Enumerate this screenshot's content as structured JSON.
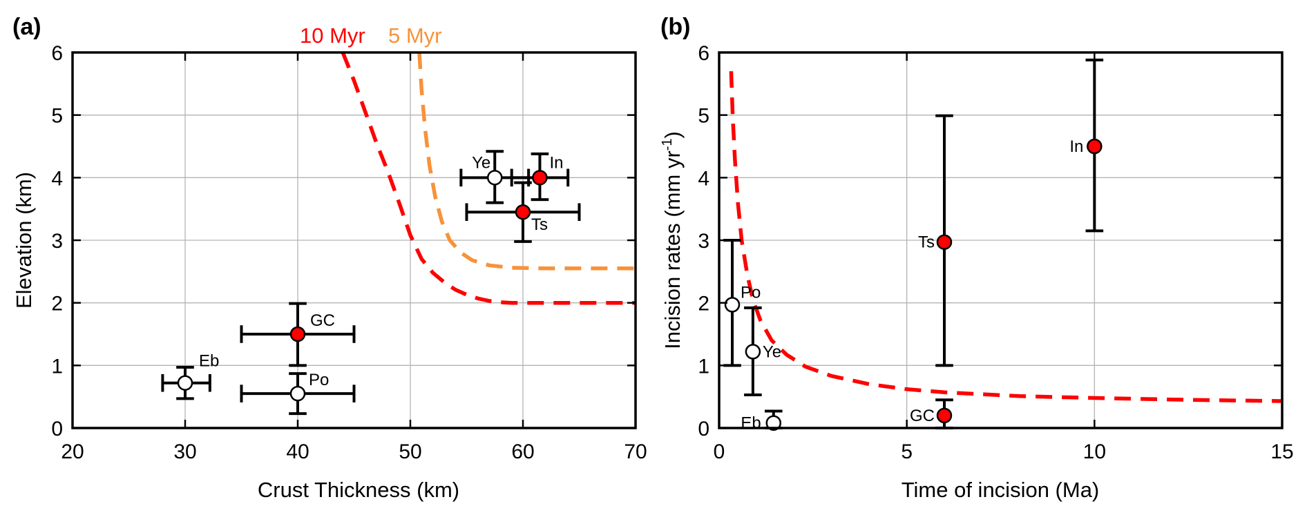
{
  "colors": {
    "red_series": "#ff0000",
    "orange_series": "#f7923a",
    "filled_marker": "#ff0000",
    "open_marker": "#ffffff"
  },
  "chart_data": [
    {
      "panel_label": "(a)",
      "type": "scatter",
      "xlabel": "Crust Thickness (km)",
      "ylabel": "Elevation (km)",
      "xlim": [
        20,
        70
      ],
      "ylim": [
        0,
        6
      ],
      "xticks": [
        20,
        30,
        40,
        50,
        60,
        70
      ],
      "yticks": [
        0,
        1,
        2,
        3,
        4,
        5,
        6
      ],
      "grid": true,
      "curve_labels": [
        {
          "label": "10 Myr",
          "color": "#ff0000"
        },
        {
          "label": "5 Myr",
          "color": "#f7923a"
        }
      ],
      "points": [
        {
          "label": "Eb",
          "x": 30,
          "y": 0.72,
          "xerr": [
            28,
            32.2
          ],
          "yerr": [
            0.47,
            0.97
          ],
          "filled": false
        },
        {
          "label": "Po",
          "x": 40,
          "y": 0.55,
          "xerr": [
            35,
            45
          ],
          "yerr": [
            0.23,
            0.87
          ],
          "filled": false
        },
        {
          "label": "GC",
          "x": 40,
          "y": 1.5,
          "xerr": [
            35,
            45
          ],
          "yerr": [
            1.0,
            1.99
          ],
          "filled": true
        },
        {
          "label": "Ye",
          "x": 57.5,
          "y": 4.0,
          "xerr": [
            54.5,
            60.5
          ],
          "yerr": [
            3.6,
            4.42
          ],
          "filled": false
        },
        {
          "label": "In",
          "x": 61.5,
          "y": 4.0,
          "xerr": [
            59,
            64
          ],
          "yerr": [
            3.65,
            4.38
          ],
          "filled": true
        },
        {
          "label": "Ts",
          "x": 60,
          "y": 3.45,
          "xerr": [
            55,
            65
          ],
          "yerr": [
            2.98,
            3.92
          ],
          "filled": true
        }
      ],
      "curves": [
        {
          "name": "10 Myr",
          "color": "#ff0000",
          "x": [
            44,
            45,
            46,
            47,
            48,
            49,
            50,
            51,
            52,
            53,
            54,
            55,
            56,
            57,
            58,
            59,
            60,
            62,
            65,
            70
          ],
          "y": [
            6.0,
            5.55,
            5.05,
            4.55,
            4.1,
            3.6,
            3.08,
            2.7,
            2.48,
            2.33,
            2.21,
            2.13,
            2.07,
            2.03,
            2.01,
            2.0,
            2.0,
            2.0,
            2.0,
            2.0
          ]
        },
        {
          "name": "5 Myr",
          "color": "#f7923a",
          "x": [
            50.8,
            51.0,
            51.3,
            51.7,
            52.2,
            52.8,
            53.5,
            54.5,
            55.5,
            57,
            59,
            62,
            66,
            70
          ],
          "y": [
            6.0,
            5.4,
            4.8,
            4.2,
            3.7,
            3.3,
            3.0,
            2.8,
            2.68,
            2.6,
            2.56,
            2.55,
            2.55,
            2.55
          ]
        }
      ]
    },
    {
      "panel_label": "(b)",
      "type": "scatter",
      "xlabel": "Time of incision (Ma)",
      "ylabel_main": "Incision rates (mm yr",
      "ylabel_sup": "-1",
      "ylabel_end": ")",
      "xlim": [
        0,
        15
      ],
      "ylim": [
        0,
        6
      ],
      "xticks": [
        0,
        5,
        10,
        15
      ],
      "yticks": [
        0,
        1,
        2,
        3,
        4,
        5,
        6
      ],
      "grid": true,
      "points": [
        {
          "label": "Po",
          "x": 0.35,
          "y": 1.97,
          "yerr": [
            1.0,
            3.0
          ],
          "filled": false
        },
        {
          "label": "Ye",
          "x": 0.9,
          "y": 1.22,
          "yerr": [
            0.53,
            1.92
          ],
          "filled": false
        },
        {
          "label": "Eb",
          "x": 1.45,
          "y": 0.08,
          "yerr": [
            0.0,
            0.27
          ],
          "filled": false
        },
        {
          "label": "GC",
          "x": 6.0,
          "y": 0.2,
          "yerr": [
            0.0,
            0.45
          ],
          "filled": true
        },
        {
          "label": "Ts",
          "x": 6.0,
          "y": 2.97,
          "yerr": [
            1.0,
            4.99
          ],
          "filled": true
        },
        {
          "label": "In",
          "x": 10.0,
          "y": 4.5,
          "yerr": [
            3.15,
            5.88
          ],
          "filled": true
        }
      ],
      "curves": [
        {
          "name": "",
          "color": "#ff0000",
          "x": [
            0.32,
            0.36,
            0.42,
            0.5,
            0.6,
            0.75,
            0.9,
            1.1,
            1.4,
            1.8,
            2.3,
            3,
            4,
            5,
            6,
            8,
            10,
            12.5,
            15
          ],
          "y": [
            5.7,
            5.0,
            4.3,
            3.6,
            3.0,
            2.45,
            2.05,
            1.72,
            1.4,
            1.17,
            0.98,
            0.83,
            0.7,
            0.62,
            0.57,
            0.51,
            0.48,
            0.45,
            0.43
          ]
        }
      ]
    }
  ]
}
